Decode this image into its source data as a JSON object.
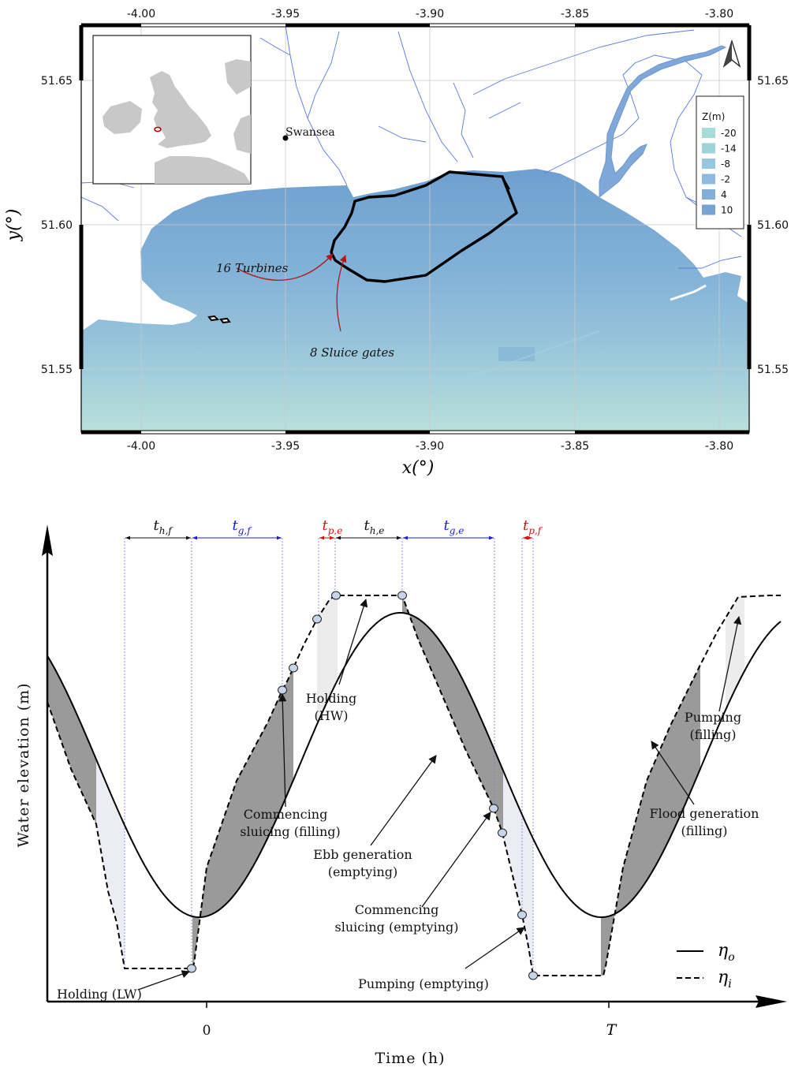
{
  "map": {
    "xlabel": "x(°)",
    "ylabel": "y(°)",
    "x_ticks": [
      "-4.00",
      "-3.95",
      "-3.90",
      "-3.85",
      "-3.80"
    ],
    "y_ticks": [
      "51.65",
      "51.60",
      "51.55"
    ],
    "city_label": "Swansea",
    "turbines_label": "16 Turbines",
    "sluice_label": "8 Sluice gates",
    "legend_title": "Z(m)",
    "legend_entries": [
      {
        "label": "-20",
        "color": "#a8dcd6"
      },
      {
        "label": "-14",
        "color": "#a0d2da"
      },
      {
        "label": "-8",
        "color": "#97c6de"
      },
      {
        "label": "-2",
        "color": "#8dbadd"
      },
      {
        "label": "4",
        "color": "#82aed8"
      },
      {
        "label": "10",
        "color": "#76a3d2"
      }
    ],
    "colors": {
      "sea_deep": "#76a3d2",
      "sea_shallow": "#b7dfd8",
      "rivers": "#5b78e0",
      "wall": "#000000",
      "arrows": "#b01818"
    }
  },
  "cycle": {
    "ylabel": "Water elevation (m)",
    "xlabel": "Time (h)",
    "x_ticks": [
      "0",
      "T"
    ],
    "phase_labels": [
      {
        "text": "t",
        "sub": "h,f",
        "color": "#111111"
      },
      {
        "text": "t",
        "sub": "g,f",
        "color": "#1a1ae6"
      },
      {
        "text": "t",
        "sub": "p,e",
        "color": "#dd1111"
      },
      {
        "text": "t",
        "sub": "h,e",
        "color": "#111111"
      },
      {
        "text": "t",
        "sub": "g,e",
        "color": "#1a1ae6"
      },
      {
        "text": "t",
        "sub": "p,f",
        "color": "#dd1111"
      }
    ],
    "annotations": {
      "holding_lw": "Holding (LW)",
      "commencing_filling_1": "Commencing",
      "commencing_filling_2": "sluicing (filling)",
      "holding_hw_1": "Holding",
      "holding_hw_2": "(HW)",
      "ebb_1": "Ebb generation",
      "ebb_2": "(emptying)",
      "commencing_emptying_1": "Commencing",
      "commencing_emptying_2": "sluicing (emptying)",
      "pumping_emptying": "Pumping (emptying)",
      "pumping_filling_1": "Pumping",
      "pumping_filling_2": "(filling)",
      "flood_1": "Flood generation",
      "flood_2": "(filling)"
    },
    "legend": [
      {
        "symbol": "η",
        "sub": "o",
        "style": "solid"
      },
      {
        "symbol": "η",
        "sub": "i",
        "style": "dashed"
      }
    ]
  }
}
